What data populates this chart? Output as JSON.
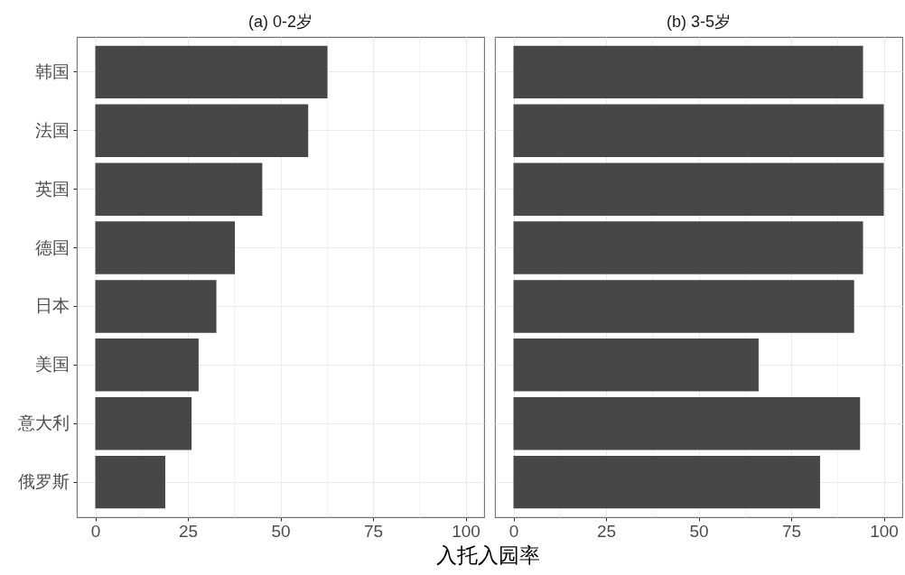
{
  "chart_data": [
    {
      "type": "bar",
      "orientation": "horizontal",
      "title": "(a) 0-2岁",
      "xlabel": "入托入园率",
      "categories": [
        "韩国",
        "法国",
        "英国",
        "德国",
        "日本",
        "美国",
        "意大利",
        "俄罗斯"
      ],
      "values": [
        62.7,
        57.5,
        45.1,
        37.7,
        32.7,
        27.9,
        26.0,
        18.9
      ],
      "color": "#474747",
      "xlim": [
        -5,
        105
      ],
      "xticks": [
        0,
        {
          "value": 12.5,
          "label": null
        },
        25,
        {
          "value": 37.5,
          "label": null
        },
        50,
        {
          "value": 62.5,
          "label": null
        },
        75,
        {
          "value": 87.5,
          "label": null
        },
        100
      ],
      "grid": true
    },
    {
      "type": "bar",
      "orientation": "horizontal",
      "title": "(b) 3-5岁",
      "categories": [
        null,
        null,
        null,
        null,
        null,
        null,
        null,
        null
      ],
      "values": [
        94.4,
        100,
        100,
        94.4,
        92.0,
        66.2,
        93.6,
        82.8
      ],
      "color": "#474747",
      "xlim": [
        -5,
        105
      ],
      "xticks": [
        0,
        {
          "value": 12.5,
          "label": null
        },
        25,
        {
          "value": 37.5,
          "label": null
        },
        50,
        {
          "value": 62.5,
          "label": null
        },
        75,
        {
          "value": 87.5,
          "label": null
        },
        100
      ],
      "grid": true,
      "tick_labels": "x"
    }
  ]
}
